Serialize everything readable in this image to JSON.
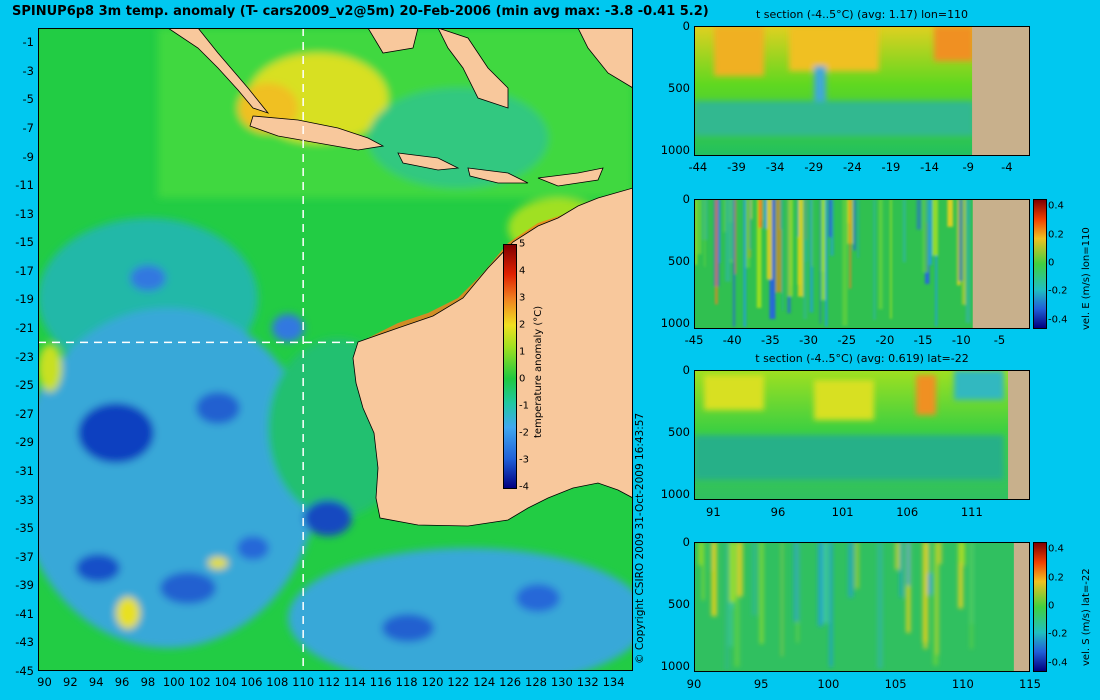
{
  "main": {
    "title": "SPINUP6p8 3m temp. anomaly (T- cars2009_v2@5m) 20-Feb-2006 (min avg max: -3.8 -0.41 5.2)",
    "copyright": "© Copyright CSIRO 2009  31-Oct-2009 16:43:57"
  },
  "colors": {
    "background": "#00c8f0",
    "land": "#f8c89c",
    "section_land": "#c8b08c"
  },
  "chart_data": [
    {
      "type": "heatmap",
      "id": "map",
      "title": "SPINUP6p8 3m temp. anomaly (T- cars2009_v2@5m) 20-Feb-2006 (min avg max: -3.8 -0.41 5.2)",
      "x_ticks": [
        "90",
        "92",
        "94",
        "96",
        "98",
        "100",
        "102",
        "104",
        "106",
        "108",
        "110",
        "112",
        "114",
        "116",
        "118",
        "120",
        "122",
        "124",
        "126",
        "128",
        "130",
        "132",
        "134"
      ],
      "y_ticks": [
        "-1",
        "-3",
        "-5",
        "-7",
        "-9",
        "-11",
        "-13",
        "-15",
        "-17",
        "-19",
        "-21",
        "-23",
        "-25",
        "-27",
        "-29",
        "-31",
        "-33",
        "-35",
        "-37",
        "-39",
        "-41",
        "-43",
        "-45"
      ],
      "xlim": [
        89.5,
        135.5
      ],
      "ylim": [
        -45,
        0
      ],
      "guide_lines": {
        "lon": 110,
        "lat": -22
      },
      "colorbar": {
        "label": "temperature anomaly (°C)",
        "ticks": [
          "5",
          "4",
          "3",
          "2",
          "1",
          "0",
          "-1",
          "-2",
          "-3",
          "-4"
        ],
        "range": [
          -4,
          5
        ]
      },
      "min": -3.8,
      "avg": -0.41,
      "max": 5.2
    },
    {
      "type": "heatmap",
      "id": "t-section-lon",
      "title": "t section (-4..5°C) (avg: 1.17) lon=110",
      "x_ticks": [
        "-44",
        "-39",
        "-34",
        "-29",
        "-24",
        "-19",
        "-14",
        "-9",
        "-4"
      ],
      "y_ticks": [
        "0",
        "500",
        "1000"
      ],
      "xlim": [
        -44.5,
        -1
      ],
      "ylim": [
        1050,
        0
      ],
      "land_from_x": -8.5
    },
    {
      "type": "heatmap",
      "id": "vel-e-section",
      "x_ticks": [
        "-45",
        "-40",
        "-35",
        "-30",
        "-25",
        "-20",
        "-15",
        "-10",
        "-5"
      ],
      "y_ticks": [
        "0",
        "500",
        "1000"
      ],
      "xlim": [
        -45,
        -1
      ],
      "ylim": [
        1050,
        0
      ],
      "land_from_x": -8.5,
      "colorbar": {
        "label": "vel. E (m/s) lon=110",
        "ticks": [
          "0.4",
          "0.2",
          "0",
          "-0.2",
          "-0.4"
        ],
        "range": [
          -0.45,
          0.45
        ]
      }
    },
    {
      "type": "heatmap",
      "id": "t-section-lat",
      "title": "t section (-4..5°C) (avg: 0.619) lat=-22",
      "x_ticks": [
        "91",
        "96",
        "101",
        "106",
        "111"
      ],
      "y_ticks": [
        "0",
        "500",
        "1000"
      ],
      "xlim": [
        89.5,
        115.5
      ],
      "ylim": [
        1050,
        0
      ],
      "land_from_x": 113.8
    },
    {
      "type": "heatmap",
      "id": "vel-s-section",
      "x_ticks": [
        "90",
        "95",
        "100",
        "105",
        "110",
        "115"
      ],
      "y_ticks": [
        "0",
        "500",
        "1000"
      ],
      "xlim": [
        90,
        115
      ],
      "ylim": [
        1050,
        0
      ],
      "land_from_x": 113.8,
      "colorbar": {
        "label": "vel. S (m/s) lat=-22",
        "ticks": [
          "0.4",
          "0.2",
          "0",
          "-0.2",
          "-0.4"
        ],
        "range": [
          -0.45,
          0.45
        ]
      }
    }
  ]
}
